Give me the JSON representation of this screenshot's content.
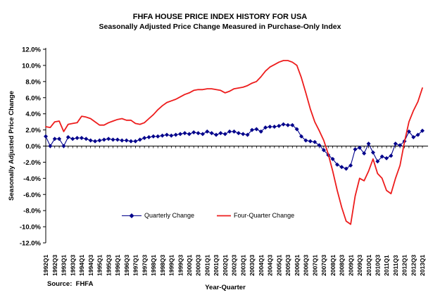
{
  "chart": {
    "title": "FHFA HOUSE PRICE INDEX HISTORY FOR USA",
    "subtitle": "Seasonally Adjusted Price Change Measured in Purchase-Only Index",
    "y_axis_label": "Seasonally Adjusted Price Change",
    "x_axis_label": "Year-Quarter",
    "source": "Source:  FHFA",
    "legend": {
      "quarterly": "Quarterly Change",
      "four_quarter": "Four-Quarter Change"
    }
  },
  "chart_data": {
    "type": "line",
    "title": "FHFA HOUSE PRICE INDEX HISTORY FOR USA",
    "subtitle": "Seasonally Adjusted Price Change Measured in Purchase-Only Index",
    "xlabel": "Year-Quarter",
    "ylabel": "Seasonally Adjusted Price Change",
    "ylim": [
      -12,
      12
    ],
    "grid": false,
    "legend_position": "bottom-inside",
    "x_tick_every": 2,
    "y_tick_labels": [
      "12.0%",
      "10.0%",
      "8.0%",
      "6.0%",
      "4.0%",
      "2.0%",
      "0.0%",
      "-2.0%",
      "-4.0%",
      "-6.0%",
      "-8.0%",
      "-10.0%",
      "-12.0%"
    ],
    "x": [
      "1992Q1",
      "1992Q2",
      "1992Q3",
      "1992Q4",
      "1993Q1",
      "1993Q2",
      "1993Q3",
      "1993Q4",
      "1994Q1",
      "1994Q2",
      "1994Q3",
      "1994Q4",
      "1995Q1",
      "1995Q2",
      "1995Q3",
      "1995Q4",
      "1996Q1",
      "1996Q2",
      "1996Q3",
      "1996Q4",
      "1997Q1",
      "1997Q2",
      "1997Q3",
      "1997Q4",
      "1998Q1",
      "1998Q2",
      "1998Q3",
      "1998Q4",
      "1999Q1",
      "1999Q2",
      "1999Q3",
      "1999Q4",
      "2000Q1",
      "2000Q2",
      "2000Q3",
      "2000Q4",
      "2001Q1",
      "2001Q2",
      "2001Q3",
      "2001Q4",
      "2002Q1",
      "2002Q2",
      "2002Q3",
      "2002Q4",
      "2003Q1",
      "2003Q2",
      "2003Q3",
      "2003Q4",
      "2004Q1",
      "2004Q2",
      "2004Q3",
      "2004Q4",
      "2005Q1",
      "2005Q2",
      "2005Q3",
      "2005Q4",
      "2006Q1",
      "2006Q2",
      "2006Q3",
      "2006Q4",
      "2007Q1",
      "2007Q2",
      "2007Q3",
      "2007Q4",
      "2008Q1",
      "2008Q2",
      "2008Q3",
      "2008Q4",
      "2009Q1",
      "2009Q2",
      "2009Q3",
      "2009Q4",
      "2010Q1",
      "2010Q2",
      "2010Q3",
      "2010Q4",
      "2011Q1",
      "2011Q2",
      "2011Q3",
      "2011Q4",
      "2012Q1",
      "2012Q2",
      "2012Q3",
      "2012Q4",
      "2013Q1"
    ],
    "series": [
      {
        "name": "Quarterly Change",
        "marker": "diamond",
        "color": "#00008B",
        "values": [
          1.2,
          0.0,
          0.9,
          0.9,
          0.0,
          1.1,
          0.9,
          1.0,
          1.0,
          0.9,
          0.7,
          0.6,
          0.7,
          0.8,
          0.9,
          0.8,
          0.8,
          0.7,
          0.7,
          0.6,
          0.6,
          0.8,
          1.0,
          1.1,
          1.2,
          1.2,
          1.3,
          1.4,
          1.3,
          1.4,
          1.5,
          1.6,
          1.5,
          1.7,
          1.6,
          1.5,
          1.8,
          1.6,
          1.4,
          1.6,
          1.5,
          1.8,
          1.8,
          1.6,
          1.5,
          1.4,
          2.0,
          2.1,
          1.8,
          2.3,
          2.4,
          2.4,
          2.5,
          2.7,
          2.6,
          2.6,
          2.1,
          1.2,
          0.7,
          0.6,
          0.5,
          0.1,
          -0.5,
          -1.1,
          -1.6,
          -2.3,
          -2.6,
          -2.8,
          -2.4,
          -0.4,
          -0.2,
          -0.9,
          0.3,
          -0.8,
          -1.9,
          -1.3,
          -1.5,
          -1.2,
          0.3,
          0.1,
          0.6,
          1.8,
          1.1,
          1.4,
          1.9
        ]
      },
      {
        "name": "Four-Quarter Change",
        "marker": null,
        "color": "#ED1C1C",
        "values": [
          2.4,
          2.3,
          3.0,
          3.1,
          1.8,
          2.7,
          2.8,
          2.9,
          3.7,
          3.6,
          3.4,
          3.0,
          2.6,
          2.6,
          2.9,
          3.1,
          3.3,
          3.4,
          3.2,
          3.2,
          2.8,
          2.7,
          2.9,
          3.4,
          3.9,
          4.5,
          5.0,
          5.4,
          5.6,
          5.8,
          6.1,
          6.4,
          6.6,
          6.9,
          7.0,
          7.0,
          7.1,
          7.1,
          7.0,
          6.9,
          6.6,
          6.8,
          7.1,
          7.2,
          7.3,
          7.5,
          7.8,
          8.0,
          8.6,
          9.3,
          9.8,
          10.1,
          10.4,
          10.6,
          10.6,
          10.4,
          10.0,
          8.5,
          6.6,
          4.6,
          3.0,
          1.9,
          0.7,
          -1.0,
          -3.1,
          -5.5,
          -7.6,
          -9.3,
          -9.7,
          -6.2,
          -4.0,
          -4.3,
          -3.1,
          -1.6,
          -3.4,
          -4.0,
          -5.5,
          -5.9,
          -4.0,
          -2.4,
          0.5,
          3.0,
          4.4,
          5.5,
          7.2
        ]
      }
    ]
  }
}
